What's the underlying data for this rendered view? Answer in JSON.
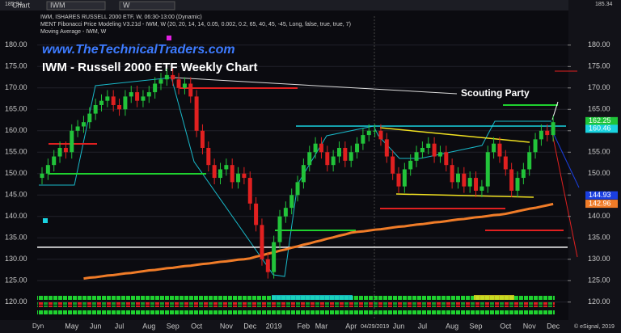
{
  "toolbar": {
    "tab": "Chart",
    "symbol": "IWM",
    "interval": "W"
  },
  "chart_data": {
    "type": "candlestick",
    "header": [
      "IWM, ISHARES RUSSELL 2000 ETF, W, 06:30-13:00 (Dynamic)",
      "MENT Fibonacci Price Modeling V3.21d - IWM, W (20, 20, 14, 14, 0.05, 0.002, 0.2, 65, 40, 45, -45, Long, false, true, true, 7)",
      "Moving Average - IWM, W"
    ],
    "watermark": "www.TheTechnicalTraders.com",
    "title": "IWM - Russell 2000 ETF Weekly Chart",
    "annotation": "Scouting Party",
    "footer": [
      "Dyn",
      "© eSignal, 2019"
    ],
    "up_color": "#22c33a",
    "down_color": "#e02020",
    "categories": [
      null,
      null,
      null,
      null,
      null,
      "May",
      null,
      null,
      null,
      "Jun",
      null,
      null,
      null,
      "Jul",
      null,
      null,
      null,
      null,
      "Aug",
      null,
      null,
      null,
      "Sep",
      null,
      null,
      null,
      "Oct",
      null,
      null,
      null,
      null,
      "Nov",
      null,
      null,
      null,
      "Dec",
      null,
      null,
      null,
      "2019",
      null,
      null,
      null,
      null,
      "Feb",
      null,
      null,
      "Mar",
      null,
      null,
      null,
      null,
      "Apr",
      null,
      null,
      null,
      "04/29/2019",
      null,
      null,
      null,
      "Jun",
      null,
      null,
      null,
      "Jul",
      null,
      null,
      null,
      null,
      "Aug",
      null,
      null,
      null,
      "Sep",
      null,
      null,
      null,
      null,
      "Oct",
      null,
      null,
      null,
      "Nov",
      null,
      null,
      null,
      "Dec"
    ],
    "open": [
      149,
      150,
      152,
      154,
      156,
      155,
      160,
      161,
      162,
      164,
      166,
      167,
      168,
      166,
      165,
      168,
      169,
      167,
      168,
      169,
      171,
      172,
      173,
      172,
      170,
      171,
      168,
      160,
      156,
      152,
      149,
      151,
      152,
      148,
      150,
      149,
      143,
      138,
      130,
      127,
      134,
      140,
      142,
      145,
      148,
      152,
      155,
      157,
      155,
      152,
      154,
      156,
      153,
      155,
      157,
      159,
      160,
      160,
      158,
      154,
      150,
      147,
      151,
      153,
      155,
      156,
      157,
      154,
      155,
      152,
      148,
      150,
      147,
      149,
      146,
      147,
      155,
      157,
      154,
      151,
      146,
      149,
      151,
      155,
      158,
      160,
      159
    ],
    "high": [
      151.5,
      153.5,
      155.5,
      157.5,
      157.5,
      161.5,
      162.5,
      163.5,
      165.5,
      167.5,
      168.5,
      169.5,
      169.5,
      167.5,
      169.5,
      170.5,
      170.5,
      169.5,
      170.5,
      172.5,
      173.5,
      174.5,
      174.5,
      173.5,
      172.5,
      172.5,
      169.5,
      161.5,
      157.5,
      153.5,
      152.5,
      153.5,
      153.5,
      151.5,
      151.5,
      150.5,
      144.5,
      139.5,
      131.5,
      135.5,
      141.5,
      143.5,
      146.5,
      149.5,
      153.5,
      156.5,
      158.5,
      158.5,
      156.5,
      155.5,
      157.5,
      157.5,
      156.5,
      158.5,
      160.5,
      161.5,
      161.5,
      161.5,
      159.5,
      155.5,
      151.5,
      152.5,
      154.5,
      156.5,
      157.5,
      158.5,
      158.5,
      156.5,
      156.5,
      153.5,
      151.5,
      151.5,
      150.5,
      150.5,
      148.5,
      156.5,
      158.5,
      158.5,
      155.5,
      152.5,
      150.5,
      152.5,
      156.5,
      159.5,
      161.5,
      161.5,
      163.5
    ],
    "low": [
      147.5,
      148.5,
      150.5,
      152.5,
      153.5,
      153.5,
      158.5,
      159.5,
      160.5,
      162.5,
      164.5,
      165.5,
      164.5,
      163.5,
      163.5,
      166.5,
      165.5,
      165.5,
      166.5,
      167.5,
      169.5,
      170.5,
      170.5,
      168.5,
      168.5,
      166.5,
      158.5,
      154.5,
      150.5,
      147.5,
      147.5,
      149.5,
      146.5,
      146.5,
      147.5,
      141.5,
      136.5,
      128.5,
      125.5,
      125.5,
      132.5,
      138.5,
      140.5,
      143.5,
      146.5,
      150.5,
      153.5,
      153.5,
      150.5,
      150.5,
      152.5,
      151.5,
      151.5,
      153.5,
      155.5,
      157.5,
      158.5,
      156.5,
      152.5,
      148.5,
      145.5,
      145.5,
      149.5,
      151.5,
      153.5,
      154.5,
      152.5,
      152.5,
      150.5,
      146.5,
      146.5,
      145.5,
      145.5,
      144.5,
      144.5,
      145.5,
      153.5,
      152.5,
      149.5,
      144.5,
      144.5,
      147.5,
      149.5,
      153.5,
      156.5,
      157.5,
      157.5
    ],
    "close": [
      150,
      152,
      154,
      156,
      155,
      160,
      161,
      162,
      164,
      166,
      167,
      168,
      166,
      165,
      168,
      169,
      167,
      168,
      169,
      171,
      172,
      173,
      172,
      170,
      171,
      168,
      160,
      156,
      152,
      149,
      151,
      152,
      148,
      150,
      149,
      143,
      138,
      130,
      127,
      134,
      140,
      142,
      145,
      148,
      152,
      155,
      157,
      155,
      152,
      154,
      156,
      153,
      155,
      157,
      159,
      160,
      160,
      158,
      154,
      150,
      147,
      151,
      153,
      155,
      156,
      157,
      154,
      155,
      152,
      148,
      150,
      147,
      149,
      146,
      147,
      155,
      157,
      154,
      151,
      146,
      149,
      151,
      155,
      158,
      160,
      159,
      162
    ],
    "moving_average": {
      "color": "#f07c28",
      "values": [
        null,
        null,
        null,
        null,
        null,
        null,
        null,
        125.5,
        125.7,
        125.8,
        126.0,
        126.2,
        126.3,
        126.5,
        126.7,
        126.8,
        127.0,
        127.2,
        127.4,
        127.5,
        127.7,
        127.9,
        128.0,
        128.2,
        128.4,
        128.5,
        128.7,
        128.9,
        129.0,
        129.2,
        129.4,
        129.5,
        129.7,
        129.9,
        130.0,
        130.2,
        130.6,
        130.9,
        131.3,
        131.6,
        132.0,
        132.3,
        132.7,
        133.0,
        133.4,
        133.7,
        134.1,
        134.4,
        134.8,
        135.1,
        135.5,
        135.8,
        136.2,
        136.4,
        136.5,
        136.7,
        136.9,
        137.0,
        137.2,
        137.4,
        137.6,
        137.7,
        137.9,
        138.1,
        138.2,
        138.4,
        138.6,
        138.7,
        138.9,
        139.1,
        139.3,
        139.4,
        139.6,
        139.8,
        139.9,
        140.1,
        140.3,
        140.4,
        140.6,
        140.9,
        141.2,
        141.5,
        141.8,
        142.0,
        142.3,
        142.6,
        142.9
      ]
    },
    "level": {
      "value": 132.8,
      "color": "#ffffff"
    },
    "ylim": [
      115.8,
      186
    ],
    "yticks": [
      {
        "value": 120,
        "label": "120.00"
      },
      {
        "value": 125,
        "label": "125.00"
      },
      {
        "value": 130,
        "label": "130.00"
      },
      {
        "value": 135,
        "label": "135.00"
      },
      {
        "value": 140,
        "label": "140.00"
      },
      {
        "value": 145,
        "label": "145.00"
      },
      {
        "value": 150,
        "label": "150.00"
      },
      {
        "value": 155,
        "label": "155.00"
      },
      {
        "value": 160,
        "label": "160.00"
      },
      {
        "value": 165,
        "label": "165.00"
      },
      {
        "value": 170,
        "label": "170.00"
      },
      {
        "value": 175,
        "label": "175.00"
      },
      {
        "value": 180,
        "label": "180.00"
      }
    ],
    "y2ticks": [
      {
        "value": 120,
        "label": "120.00"
      },
      {
        "value": 125,
        "label": "125.00"
      },
      {
        "value": 130,
        "label": "130.00"
      },
      {
        "value": 135,
        "label": "135.00"
      },
      {
        "value": 140,
        "label": "140.00"
      },
      {
        "value": 145,
        "label": "145.00"
      },
      {
        "value": 150,
        "label": "150.00"
      },
      {
        "value": 155,
        "label": "155.00"
      },
      {
        "value": 160,
        "label": "160.00"
      },
      {
        "value": 165,
        "label": "165.00"
      },
      {
        "value": 170,
        "label": "170.00"
      },
      {
        "value": 175,
        "label": "175.00"
      },
      {
        "value": 180,
        "label": "180.00"
      }
    ],
    "top_value": 185.34,
    "price_labels": [
      {
        "value": 162.25,
        "color": "#1fc43a"
      },
      {
        "value": 160.46,
        "color": "#19d3e0"
      },
      {
        "value": 144.93,
        "color": "#1a3fe0"
      },
      {
        "value": 142.96,
        "color": "#f07c28"
      }
    ]
  }
}
